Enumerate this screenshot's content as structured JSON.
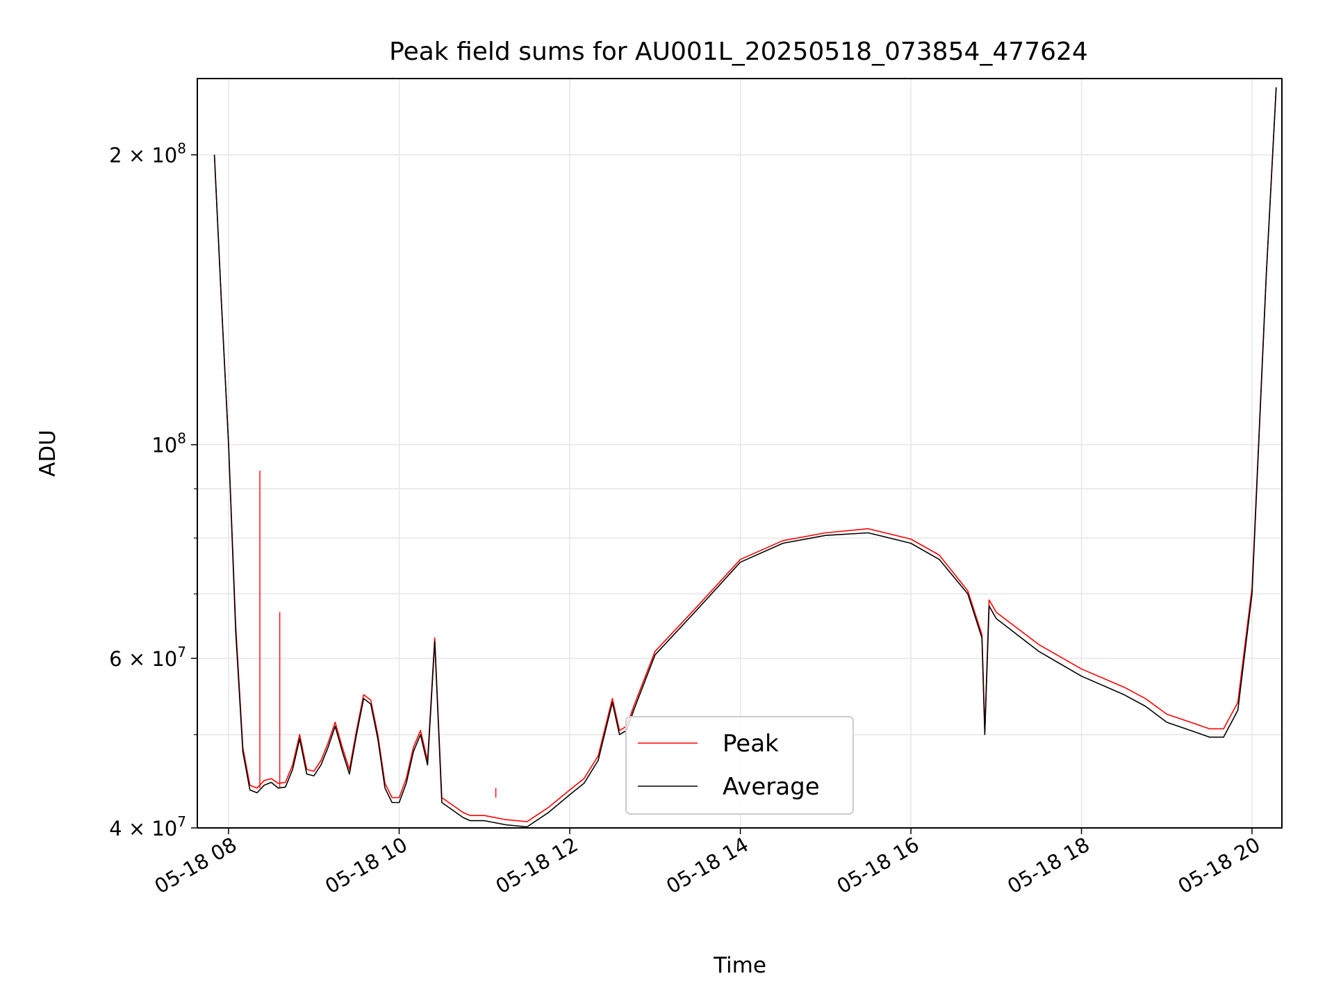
{
  "chart_data": {
    "type": "line",
    "title": "Peak field sums for AU001L_20250518_073854_477624",
    "xlabel": "Time",
    "ylabel": "ADU",
    "y_scale": "log",
    "ylim": [
      40000000,
      240000000
    ],
    "xlim": [
      "05-18 07:38",
      "05-18 20:21"
    ],
    "grid": true,
    "legend_position": "lower center",
    "x_ticks": [
      "05-18 08",
      "05-18 10",
      "05-18 12",
      "05-18 14",
      "05-18 16",
      "05-18 18",
      "05-18 20"
    ],
    "y_tick_labels": [
      {
        "value": 200000000,
        "mantissa": "2",
        "exponent": "8"
      },
      {
        "value": 100000000,
        "mantissa": "",
        "exponent": "8"
      },
      {
        "value": 60000000,
        "mantissa": "6",
        "exponent": "7"
      },
      {
        "value": 40000000,
        "mantissa": "4",
        "exponent": "7"
      }
    ],
    "series": [
      {
        "name": "Average",
        "color": "#000000",
        "x": [
          "05-18 07:50",
          "05-18 07:55",
          "05-18 08:00",
          "05-18 08:05",
          "05-18 08:10",
          "05-18 08:15",
          "05-18 08:20",
          "05-18 08:25",
          "05-18 08:30",
          "05-18 08:35",
          "05-18 08:40",
          "05-18 08:45",
          "05-18 08:50",
          "05-18 08:55",
          "05-18 09:00",
          "05-18 09:05",
          "05-18 09:10",
          "05-18 09:15",
          "05-18 09:20",
          "05-18 09:25",
          "05-18 09:30",
          "05-18 09:35",
          "05-18 09:40",
          "05-18 09:45",
          "05-18 09:50",
          "05-18 09:55",
          "05-18 10:00",
          "05-18 10:05",
          "05-18 10:10",
          "05-18 10:15",
          "05-18 10:20",
          "05-18 10:25",
          "05-18 10:30",
          "05-18 10:35",
          "05-18 10:40",
          "05-18 10:45",
          "05-18 10:50",
          "05-18 11:00",
          "05-18 11:15",
          "05-18 11:30",
          "05-18 11:45",
          "05-18 12:00",
          "05-18 12:10",
          "05-18 12:20",
          "05-18 12:30",
          "05-18 12:35",
          "05-18 12:40",
          "05-18 12:45",
          "05-18 13:00",
          "05-18 13:30",
          "05-18 14:00",
          "05-18 14:30",
          "05-18 15:00",
          "05-18 15:30",
          "05-18 16:00",
          "05-18 16:20",
          "05-18 16:40",
          "05-18 16:50",
          "05-18 16:52",
          "05-18 16:55",
          "05-18 17:00",
          "05-18 17:30",
          "05-18 18:00",
          "05-18 18:30",
          "05-18 18:45",
          "05-18 19:00",
          "05-18 19:20",
          "05-18 19:30",
          "05-18 19:40",
          "05-18 19:50",
          "05-18 20:00",
          "05-18 20:10",
          "05-18 20:17"
        ],
        "values": [
          200000000,
          140000000,
          100000000,
          64000000,
          48000000,
          43800000,
          43500000,
          44300000,
          44600000,
          44000000,
          44100000,
          46000000,
          49500000,
          45500000,
          45300000,
          46500000,
          48500000,
          51000000,
          48000000,
          45500000,
          50000000,
          54500000,
          53800000,
          49500000,
          44000000,
          42500000,
          42500000,
          44500000,
          48000000,
          50000000,
          46500000,
          62500000,
          42500000,
          42000000,
          41500000,
          41000000,
          40700000,
          40700000,
          40300000,
          40100000,
          41500000,
          43300000,
          44500000,
          47000000,
          54000000,
          50000000,
          50500000,
          53000000,
          60500000,
          67500000,
          75500000,
          79000000,
          80500000,
          81000000,
          79000000,
          76000000,
          70000000,
          63000000,
          50000000,
          68000000,
          66000000,
          61000000,
          57500000,
          55000000,
          53500000,
          51500000,
          50300000,
          49700000,
          49700000,
          53000000,
          70000000,
          150000000,
          235000000
        ]
      },
      {
        "name": "Peak",
        "color": "#ff0000",
        "x": [
          "05-18 07:50",
          "05-18 07:55",
          "05-18 08:00",
          "05-18 08:05",
          "05-18 08:10",
          "05-18 08:15",
          "05-18 08:20",
          "05-18 08:25",
          "05-18 08:30",
          "05-18 08:35",
          "05-18 08:40",
          "05-18 08:45",
          "05-18 08:50",
          "05-18 08:55",
          "05-18 09:00",
          "05-18 09:05",
          "05-18 09:10",
          "05-18 09:15",
          "05-18 09:20",
          "05-18 09:25",
          "05-18 09:30",
          "05-18 09:35",
          "05-18 09:40",
          "05-18 09:45",
          "05-18 09:50",
          "05-18 09:55",
          "05-18 10:00",
          "05-18 10:05",
          "05-18 10:10",
          "05-18 10:15",
          "05-18 10:20",
          "05-18 10:25",
          "05-18 10:30",
          "05-18 10:35",
          "05-18 10:40",
          "05-18 10:45",
          "05-18 10:50",
          "05-18 11:00",
          "05-18 11:15",
          "05-18 11:30",
          "05-18 11:45",
          "05-18 12:00",
          "05-18 12:10",
          "05-18 12:20",
          "05-18 12:30",
          "05-18 12:35",
          "05-18 12:40",
          "05-18 12:45",
          "05-18 13:00",
          "05-18 13:30",
          "05-18 14:00",
          "05-18 14:30",
          "05-18 15:00",
          "05-18 15:30",
          "05-18 16:00",
          "05-18 16:20",
          "05-18 16:40",
          "05-18 16:50",
          "05-18 16:52",
          "05-18 16:55",
          "05-18 17:00",
          "05-18 17:30",
          "05-18 18:00",
          "05-18 18:30",
          "05-18 18:45",
          "05-18 19:00",
          "05-18 19:20",
          "05-18 19:30",
          "05-18 19:40",
          "05-18 19:50",
          "05-18 20:00",
          "05-18 20:10",
          "05-18 20:17"
        ],
        "values": [
          200000000,
          140000000,
          100000000,
          65000000,
          48500000,
          44300000,
          44000000,
          44800000,
          45000000,
          44500000,
          44600000,
          46500000,
          50000000,
          46000000,
          45800000,
          47000000,
          49000000,
          51500000,
          48500000,
          46000000,
          50500000,
          55000000,
          54300000,
          50000000,
          44500000,
          43000000,
          43000000,
          45000000,
          48500000,
          50500000,
          47000000,
          63000000,
          43000000,
          42500000,
          42000000,
          41500000,
          41200000,
          41200000,
          40800000,
          40600000,
          42000000,
          43800000,
          45000000,
          47500000,
          54500000,
          50500000,
          51000000,
          53500000,
          61000000,
          68000000,
          76000000,
          79500000,
          81000000,
          81800000,
          79800000,
          76800000,
          70500000,
          63500000,
          50500000,
          69000000,
          67000000,
          62000000,
          58500000,
          56000000,
          54500000,
          52500000,
          51300000,
          50700000,
          50700000,
          54000000,
          71000000,
          150000000,
          235000000
        ],
        "spikes": [
          {
            "x": "05-18 08:22",
            "value": 94000000
          },
          {
            "x": "05-18 08:36",
            "value": 67000000
          },
          {
            "x": "05-18 11:08",
            "value": 43000000
          }
        ]
      }
    ]
  }
}
